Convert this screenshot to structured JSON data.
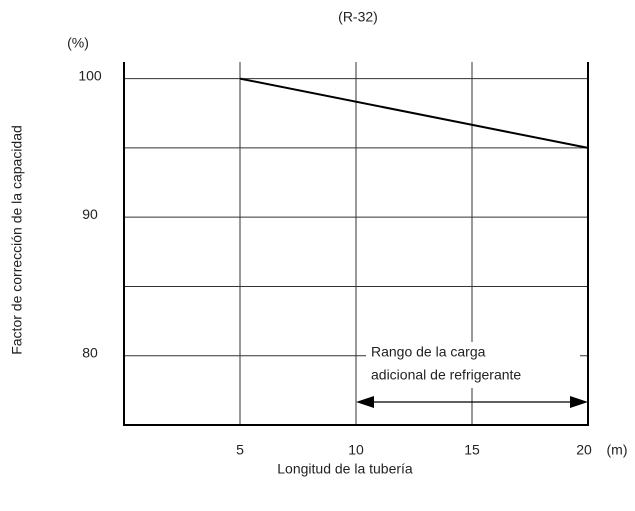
{
  "chart_data": {
    "type": "line",
    "title": "(R-32)",
    "y_unit": "(%)",
    "x_unit": "(m)",
    "xlabel": "Longitud de la tubería",
    "ylabel": "Factor de corrección de la capacidad",
    "x": [
      5,
      20
    ],
    "series": [
      {
        "color": "#000000",
        "values": [
          100,
          95
        ]
      }
    ],
    "xlim": [
      0,
      20
    ],
    "ylim": [
      75,
      101.2
    ],
    "xticks": [
      5,
      10,
      15,
      20
    ],
    "yticks": [
      80,
      90,
      100
    ],
    "minor_yticks": [
      85,
      95
    ],
    "grid": true,
    "annotation": {
      "lines": [
        "Rango de la carga",
        "adicional de refrigerante"
      ],
      "range": [
        10,
        20
      ]
    }
  }
}
